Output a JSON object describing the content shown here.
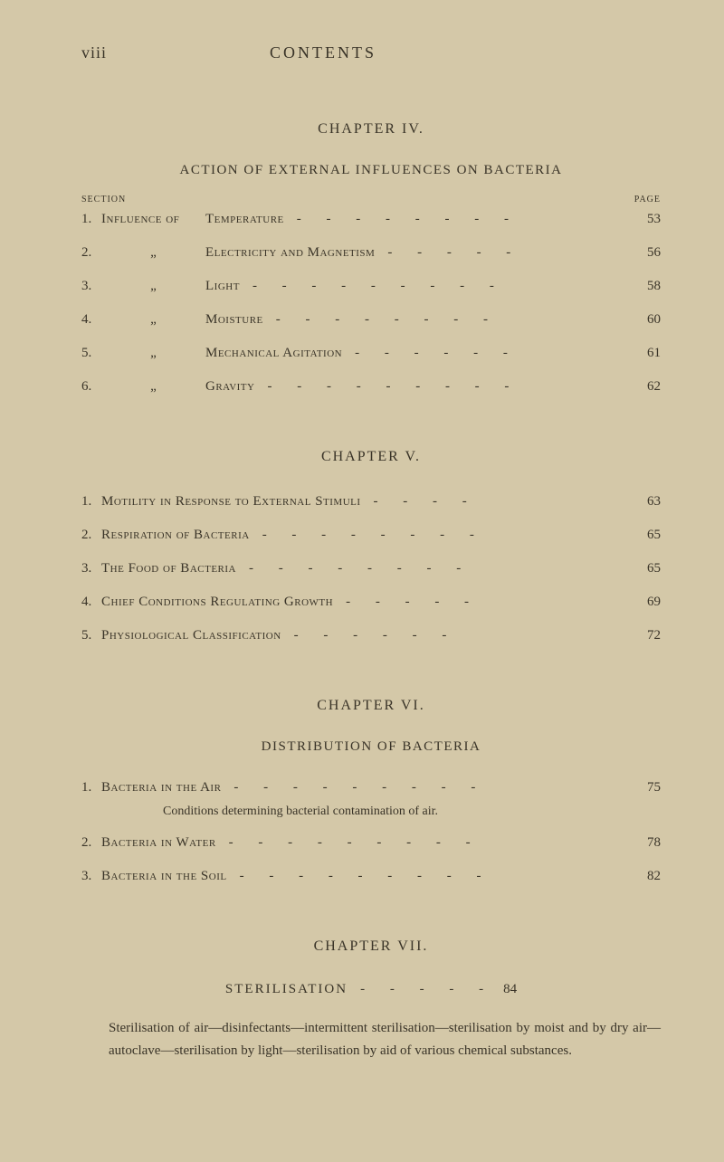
{
  "header": {
    "page_number": "viii",
    "title": "CONTENTS"
  },
  "chapter4": {
    "heading": "CHAPTER IV.",
    "subtitle": "ACTION OF EXTERNAL INFLUENCES ON BACTERIA",
    "section_label": "SECTION",
    "page_label": "PAGE",
    "entries": [
      {
        "num": "1.",
        "prefix": "Influence of",
        "title": "Temperature",
        "dashes": "- - - - - - - -",
        "page": "53"
      },
      {
        "num": "2.",
        "prefix": "„",
        "title": "Electricity and Magnetism",
        "dashes": "- - - - -",
        "page": "56"
      },
      {
        "num": "3.",
        "prefix": "„",
        "title": "Light",
        "dashes": "- - - - - - - - -",
        "page": "58"
      },
      {
        "num": "4.",
        "prefix": "„",
        "title": "Moisture",
        "dashes": "- - - - - - - -",
        "page": "60"
      },
      {
        "num": "5.",
        "prefix": "„",
        "title": "Mechanical Agitation",
        "dashes": "- - - - - -",
        "page": "61"
      },
      {
        "num": "6.",
        "prefix": "„",
        "title": "Gravity",
        "dashes": "- - - - - - - - -",
        "page": "62"
      }
    ]
  },
  "chapter5": {
    "heading": "CHAPTER V.",
    "entries": [
      {
        "num": "1.",
        "title": "Motility in Response to External Stimuli",
        "dashes": "- - - -",
        "page": "63"
      },
      {
        "num": "2.",
        "title": "Respiration of Bacteria",
        "dashes": "- - - - - - - -",
        "page": "65"
      },
      {
        "num": "3.",
        "title": "The Food of Bacteria",
        "dashes": "- - - - - - - -",
        "page": "65"
      },
      {
        "num": "4.",
        "title": "Chief Conditions Regulating Growth",
        "dashes": "- - - - -",
        "page": "69"
      },
      {
        "num": "5.",
        "title": "Physiological Classification",
        "dashes": "- - - - - -",
        "page": "72"
      }
    ]
  },
  "chapter6": {
    "heading": "CHAPTER VI.",
    "subtitle": "DISTRIBUTION OF BACTERIA",
    "entries": [
      {
        "num": "1.",
        "title": "Bacteria in the Air",
        "dashes": "- - - - - - - - -",
        "page": "75"
      },
      {
        "num": "2.",
        "title": "Bacteria in Water",
        "dashes": "- - - - - - - - -",
        "page": "78"
      },
      {
        "num": "3.",
        "title": "Bacteria in the Soil",
        "dashes": "- - - - - - - - -",
        "page": "82"
      }
    ],
    "conditions_note": "Conditions determining bacterial contamination of air."
  },
  "chapter7": {
    "heading": "CHAPTER VII.",
    "sterilisation_title": "STERILISATION",
    "sterilisation_dashes": "- - - - -",
    "sterilisation_page": "84",
    "description": "Sterilisation of air—disinfectants—intermittent sterilisation—sterilisation by moist and by dry air—autoclave—sterilisation by light—sterilisation by aid of various chemical substances."
  }
}
